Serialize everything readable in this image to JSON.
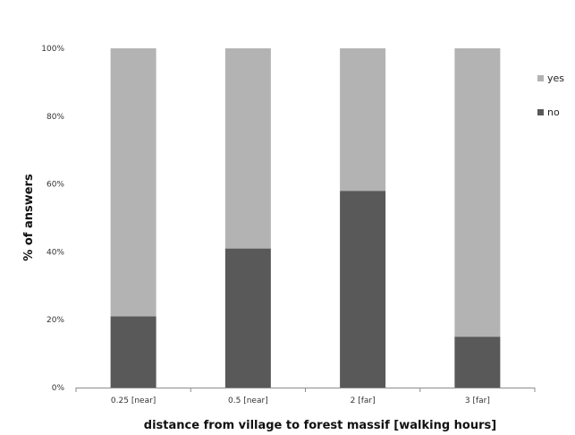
{
  "chart_data": {
    "type": "bar",
    "stacked": true,
    "title": "",
    "xlabel": "distance from village to forest massif [walking hours]",
    "ylabel": "% of answers",
    "ylim": [
      0,
      100
    ],
    "yticks": [
      "0%",
      "20%",
      "40%",
      "60%",
      "80%",
      "100%"
    ],
    "categories": [
      "0.25 [near]",
      "0.5 [near]",
      "2 [far]",
      "3 [far]"
    ],
    "series": [
      {
        "name": "no",
        "color": "#595959",
        "values": [
          21,
          41,
          58,
          15
        ]
      },
      {
        "name": "yes",
        "color": "#b3b3b3",
        "values": [
          79,
          59,
          42,
          85
        ]
      }
    ],
    "legend": {
      "position": "right",
      "order": [
        "yes",
        "no"
      ]
    },
    "grid": false
  }
}
